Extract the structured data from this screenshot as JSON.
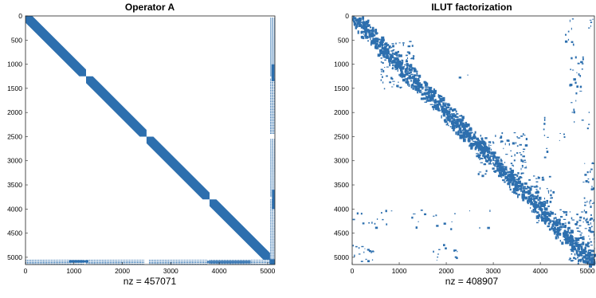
{
  "chart_data": [
    {
      "type": "spy",
      "title": "Operator A",
      "xlabel": "nz = 457071",
      "xlim": [
        0,
        5150
      ],
      "ylim": [
        0,
        5150
      ],
      "xticks": [
        0,
        1000,
        2000,
        3000,
        4000,
        5000
      ],
      "yticks": [
        0,
        500,
        1000,
        1500,
        2000,
        2500,
        3000,
        3500,
        4000,
        4500,
        5000
      ],
      "color": "#2d6fae",
      "nz": 457071,
      "diagonal_blocks": [
        [
          0,
          1250
        ],
        [
          1250,
          2500
        ],
        [
          2500,
          3800
        ],
        [
          3800,
          5050
        ]
      ],
      "band_halfwidth": 140,
      "border_rows": [
        5050,
        5150
      ],
      "border_cols": [
        5050,
        5150
      ]
    },
    {
      "type": "spy",
      "title": "ILUT factorization",
      "xlabel": "nz = 408907",
      "xlim": [
        0,
        5150
      ],
      "ylim": [
        0,
        5150
      ],
      "xticks": [
        0,
        1000,
        2000,
        3000,
        4000,
        5000
      ],
      "yticks": [
        0,
        500,
        1000,
        1500,
        2000,
        2500,
        3000,
        3500,
        4000,
        4500,
        5000
      ],
      "color": "#2d6fae",
      "nz": 408907
    }
  ]
}
